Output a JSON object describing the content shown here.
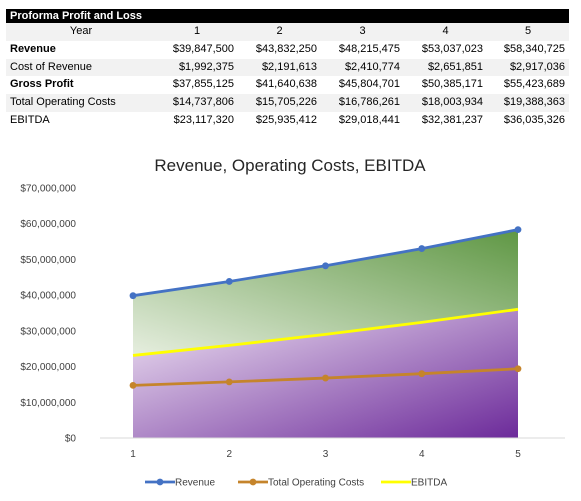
{
  "table": {
    "title": "Proforma Profit and Loss",
    "year_label": "Year",
    "years": [
      "1",
      "2",
      "3",
      "4",
      "5"
    ],
    "rows": [
      {
        "label": "Revenue",
        "bold": true,
        "values": [
          "$39,847,500",
          "$43,832,250",
          "$48,215,475",
          "$53,037,023",
          "$58,340,725"
        ]
      },
      {
        "label": "Cost of Revenue",
        "bold": false,
        "values": [
          "$1,992,375",
          "$2,191,613",
          "$2,410,774",
          "$2,651,851",
          "$2,917,036"
        ]
      },
      {
        "label": "Gross Profit",
        "bold": true,
        "values": [
          "$37,855,125",
          "$41,640,638",
          "$45,804,701",
          "$50,385,171",
          "$55,423,689"
        ]
      },
      {
        "label": "Total Operating Costs",
        "bold": false,
        "values": [
          "$14,737,806",
          "$15,705,226",
          "$16,786,261",
          "$18,003,934",
          "$19,388,363"
        ]
      },
      {
        "label": "EBITDA",
        "bold": false,
        "values": [
          "$23,117,320",
          "$25,935,412",
          "$29,018,441",
          "$32,381,237",
          "$36,035,326"
        ]
      }
    ]
  },
  "chart_data": {
    "type": "line",
    "title": "Revenue, Operating Costs, EBITDA",
    "xlabel": "",
    "ylabel": "",
    "x": [
      1,
      2,
      3,
      4,
      5
    ],
    "ylim": [
      0,
      70000000
    ],
    "yticks": [
      0,
      10000000,
      20000000,
      30000000,
      40000000,
      50000000,
      60000000,
      70000000
    ],
    "ytick_labels": [
      "$0",
      "$10,000,000",
      "$20,000,000",
      "$30,000,000",
      "$40,000,000",
      "$50,000,000",
      "$60,000,000",
      "$70,000,000"
    ],
    "grid": false,
    "legend": "bottom",
    "series": [
      {
        "name": "Revenue",
        "color": "#4472c4",
        "marker": true,
        "values": [
          39847500,
          43832250,
          48215475,
          53037023,
          58340725
        ]
      },
      {
        "name": "Total Operating Costs",
        "color": "#c5842b",
        "marker": true,
        "values": [
          14737806,
          15705226,
          16786261,
          18003934,
          19388363
        ]
      },
      {
        "name": "EBITDA",
        "color": "#ffff00",
        "marker": false,
        "values": [
          23117320,
          25935412,
          29018441,
          32381237,
          36035326
        ]
      }
    ],
    "fill_colors": {
      "upper_light": "#e6eedf",
      "upper_dark": "#5f9744",
      "lower_light": "#f2e8f5",
      "lower_dark": "#6c2a9a"
    }
  }
}
